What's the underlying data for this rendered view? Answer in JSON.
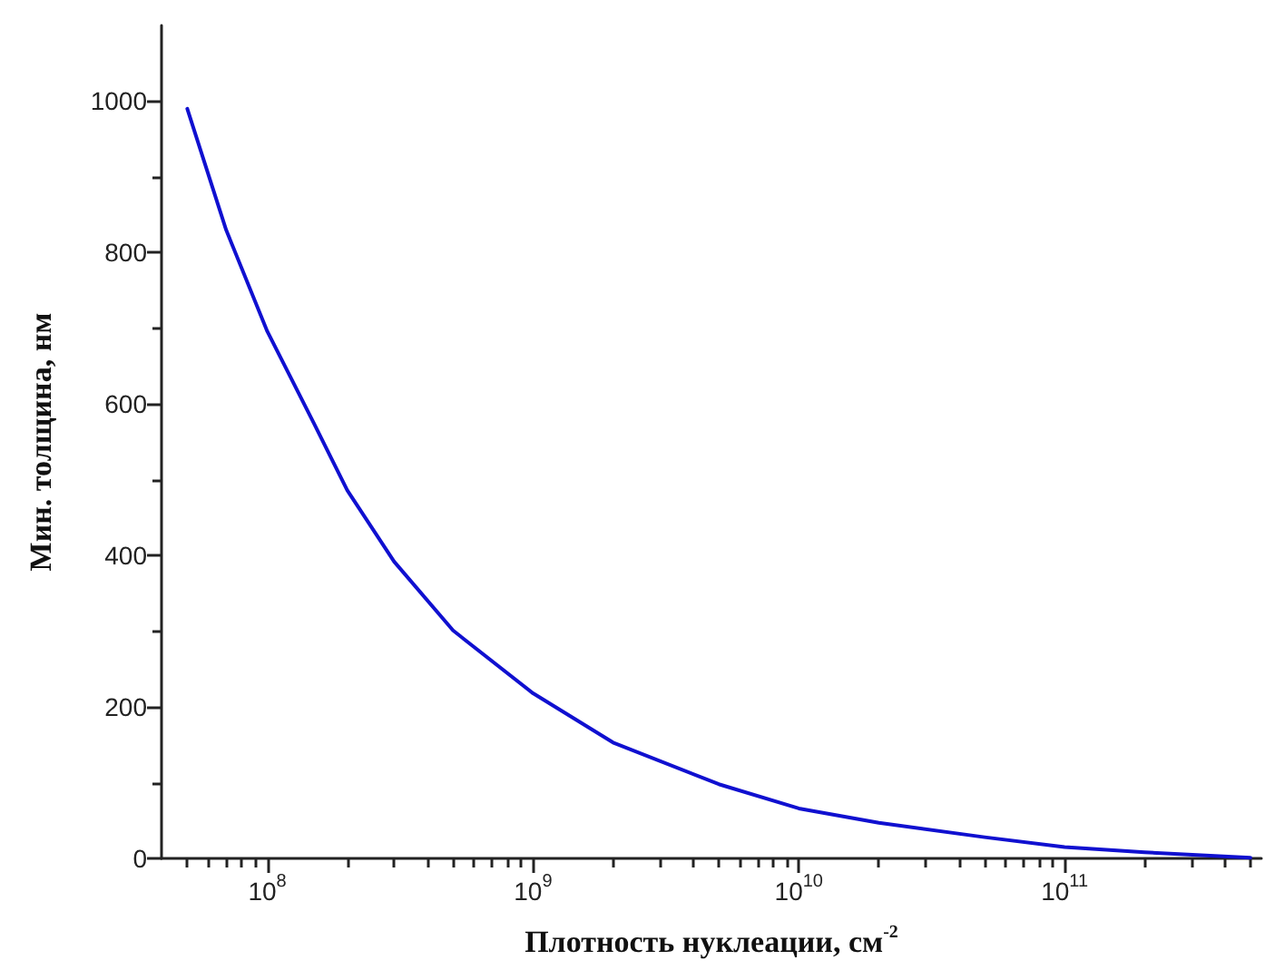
{
  "chart_data": {
    "type": "line",
    "xlabel": "Плотность нуклеации, см$^{-2}$",
    "ylabel": "Мин. толщина, нм",
    "log": "x",
    "xlim": [
      40000000,
      550000000000
    ],
    "ylim": [
      0,
      1100
    ],
    "xticks": [
      {
        "value": 50000000,
        "label": null
      },
      {
        "value": 60000000,
        "label": null
      },
      {
        "value": 70000000,
        "label": null
      },
      {
        "value": 80000000,
        "label": null
      },
      {
        "value": 90000000,
        "label": null
      },
      {
        "value": 100000000,
        "label": "10$^{8}$"
      },
      {
        "value": 200000000,
        "label": null
      },
      {
        "value": 300000000,
        "label": null
      },
      {
        "value": 400000000,
        "label": null
      },
      {
        "value": 500000000,
        "label": null
      },
      {
        "value": 600000000,
        "label": null
      },
      {
        "value": 700000000,
        "label": null
      },
      {
        "value": 800000000,
        "label": null
      },
      {
        "value": 900000000,
        "label": null
      },
      {
        "value": 1000000000,
        "label": "10$^{9}$"
      },
      {
        "value": 2000000000,
        "label": null
      },
      {
        "value": 3000000000,
        "label": null
      },
      {
        "value": 4000000000,
        "label": null
      },
      {
        "value": 5000000000,
        "label": null
      },
      {
        "value": 6000000000,
        "label": null
      },
      {
        "value": 7000000000,
        "label": null
      },
      {
        "value": 8000000000,
        "label": null
      },
      {
        "value": 9000000000,
        "label": null
      },
      {
        "value": 10000000000,
        "label": "10$^{10}$"
      },
      {
        "value": 20000000000,
        "label": null
      },
      {
        "value": 30000000000,
        "label": null
      },
      {
        "value": 40000000000,
        "label": null
      },
      {
        "value": 50000000000,
        "label": null
      },
      {
        "value": 60000000000,
        "label": null
      },
      {
        "value": 70000000000,
        "label": null
      },
      {
        "value": 80000000000,
        "label": null
      },
      {
        "value": 90000000000,
        "label": null
      },
      {
        "value": 100000000000,
        "label": "10$^{11}$"
      },
      {
        "value": 200000000000,
        "label": null
      },
      {
        "value": 300000000000,
        "label": null
      },
      {
        "value": 400000000000,
        "label": null
      },
      {
        "value": 500000000000,
        "label": null
      }
    ],
    "yticks": [
      0,
      {
        "value": 100,
        "label": null
      },
      200,
      {
        "value": 300,
        "label": null
      },
      400,
      {
        "value": 500,
        "label": null
      },
      600,
      {
        "value": 700,
        "label": null
      },
      800,
      {
        "value": 900,
        "label": null
      },
      1000
    ],
    "marker": "none",
    "line_style": "solid",
    "series": [
      {
        "color": "#1010d0",
        "x": [
          50000000,
          70000000,
          100000000,
          150000000,
          200000000,
          300000000,
          500000000,
          1000000000,
          2000000000,
          5000000000,
          10000000000,
          20000000000,
          50000000000,
          100000000000,
          200000000000,
          500000000000
        ],
        "values": [
          990,
          830,
          696,
          574,
          486,
          392,
          301,
          218,
          153,
          98,
          66,
          47,
          28,
          15,
          8,
          1
        ]
      }
    ]
  }
}
